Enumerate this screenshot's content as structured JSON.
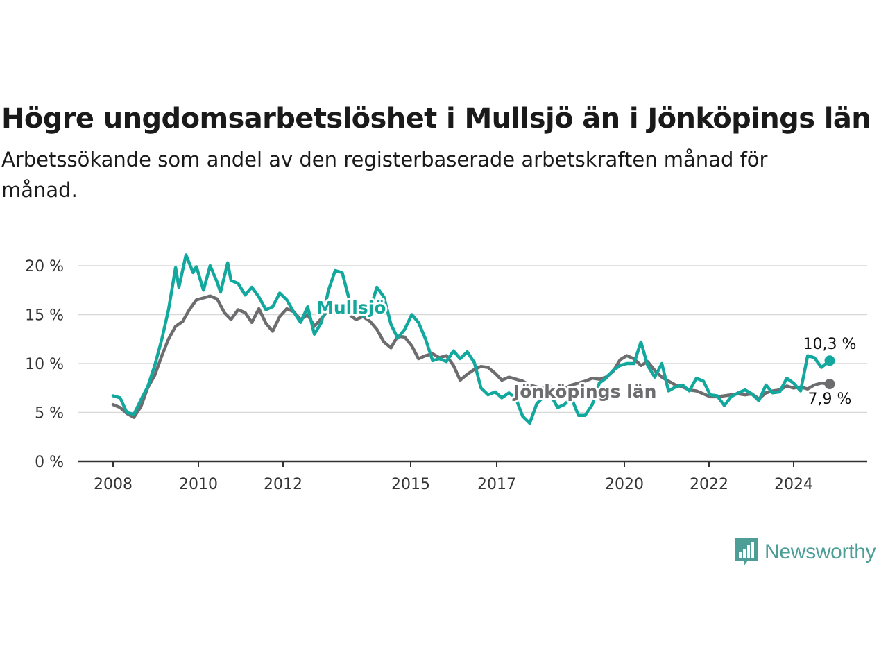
{
  "header": {
    "title": "Högre ungdomsarbetslöshet i Mullsjö än i Jönköpings län",
    "subtitle": "Arbetssökande som andel av den registerbaserade arbetskraften månad för månad."
  },
  "brand": {
    "name": "Newsworthy",
    "icon": "bar-chart-speech-bubble-icon",
    "color": "#4c9e97"
  },
  "chart_data": {
    "type": "line",
    "x_axis": {
      "min": 2008.0,
      "max": 2025.8,
      "ticks": [
        "2008",
        "2010",
        "2012",
        "2015",
        "2017",
        "2020",
        "2022",
        "2024"
      ]
    },
    "y_axis": {
      "min": 0,
      "max": 20,
      "ticks": [
        "0 %",
        "5 %",
        "10 %",
        "15 %",
        "20 %"
      ]
    },
    "grid": "horizontal",
    "series": [
      {
        "name": "Jönköpings län",
        "color": "#6d6d70",
        "end_label": "7,9 %",
        "points": [
          [
            2008.0,
            5.8
          ],
          [
            2008.17,
            5.5
          ],
          [
            2008.33,
            4.9
          ],
          [
            2008.5,
            4.5
          ],
          [
            2008.67,
            5.6
          ],
          [
            2008.83,
            7.5
          ],
          [
            2009.0,
            8.8
          ],
          [
            2009.17,
            10.8
          ],
          [
            2009.33,
            12.5
          ],
          [
            2009.5,
            13.8
          ],
          [
            2009.67,
            14.3
          ],
          [
            2009.83,
            15.5
          ],
          [
            2010.0,
            16.5
          ],
          [
            2010.17,
            16.7
          ],
          [
            2010.33,
            16.9
          ],
          [
            2010.5,
            16.6
          ],
          [
            2010.67,
            15.2
          ],
          [
            2010.83,
            14.5
          ],
          [
            2011.0,
            15.5
          ],
          [
            2011.17,
            15.2
          ],
          [
            2011.33,
            14.2
          ],
          [
            2011.5,
            15.6
          ],
          [
            2011.67,
            14.1
          ],
          [
            2011.83,
            13.3
          ],
          [
            2012.0,
            14.8
          ],
          [
            2012.17,
            15.6
          ],
          [
            2012.33,
            15.3
          ],
          [
            2012.5,
            14.5
          ],
          [
            2012.67,
            15.0
          ],
          [
            2012.83,
            13.8
          ],
          [
            2013.0,
            14.6
          ],
          [
            2013.17,
            15.5
          ],
          [
            2013.33,
            15.8
          ],
          [
            2013.5,
            15.6
          ],
          [
            2013.67,
            15.0
          ],
          [
            2013.83,
            14.5
          ],
          [
            2014.0,
            14.8
          ],
          [
            2014.17,
            14.3
          ],
          [
            2014.33,
            13.5
          ],
          [
            2014.5,
            12.2
          ],
          [
            2014.67,
            11.6
          ],
          [
            2014.83,
            12.8
          ],
          [
            2015.0,
            12.7
          ],
          [
            2015.17,
            11.8
          ],
          [
            2015.33,
            10.5
          ],
          [
            2015.5,
            10.8
          ],
          [
            2015.67,
            11.0
          ],
          [
            2015.83,
            10.6
          ],
          [
            2016.0,
            10.8
          ],
          [
            2016.17,
            9.8
          ],
          [
            2016.33,
            8.3
          ],
          [
            2016.5,
            8.9
          ],
          [
            2016.67,
            9.4
          ],
          [
            2016.83,
            9.7
          ],
          [
            2017.0,
            9.6
          ],
          [
            2017.17,
            9.0
          ],
          [
            2017.33,
            8.3
          ],
          [
            2017.5,
            8.6
          ],
          [
            2017.67,
            8.4
          ],
          [
            2017.83,
            8.2
          ],
          [
            2018.0,
            7.8
          ],
          [
            2018.17,
            7.6
          ],
          [
            2018.33,
            7.5
          ],
          [
            2018.5,
            7.6
          ],
          [
            2018.67,
            7.5
          ],
          [
            2018.83,
            7.4
          ],
          [
            2019.0,
            7.8
          ],
          [
            2019.17,
            8.0
          ],
          [
            2019.33,
            8.2
          ],
          [
            2019.5,
            8.5
          ],
          [
            2019.67,
            8.4
          ],
          [
            2019.83,
            8.6
          ],
          [
            2020.0,
            9.2
          ],
          [
            2020.17,
            10.4
          ],
          [
            2020.33,
            10.8
          ],
          [
            2020.5,
            10.5
          ],
          [
            2020.67,
            9.8
          ],
          [
            2020.83,
            10.2
          ],
          [
            2021.0,
            9.3
          ],
          [
            2021.17,
            8.6
          ],
          [
            2021.33,
            8.2
          ],
          [
            2021.5,
            7.8
          ],
          [
            2021.67,
            7.6
          ],
          [
            2021.83,
            7.3
          ],
          [
            2022.0,
            7.2
          ],
          [
            2022.17,
            6.9
          ],
          [
            2022.33,
            6.6
          ],
          [
            2022.5,
            6.6
          ],
          [
            2022.67,
            6.7
          ],
          [
            2022.83,
            6.8
          ],
          [
            2023.0,
            6.9
          ],
          [
            2023.17,
            6.8
          ],
          [
            2023.33,
            6.9
          ],
          [
            2023.5,
            6.4
          ],
          [
            2023.67,
            7.0
          ],
          [
            2023.83,
            7.2
          ],
          [
            2024.0,
            7.3
          ],
          [
            2024.17,
            7.7
          ],
          [
            2024.33,
            7.5
          ],
          [
            2024.5,
            7.6
          ],
          [
            2024.67,
            7.4
          ],
          [
            2024.83,
            7.8
          ],
          [
            2025.0,
            8.0
          ],
          [
            2025.2,
            7.9
          ]
        ]
      },
      {
        "name": "Mullsjö",
        "color": "#13a89e",
        "end_label": "10,3 %",
        "points": [
          [
            2008.0,
            6.7
          ],
          [
            2008.17,
            6.5
          ],
          [
            2008.33,
            5.0
          ],
          [
            2008.5,
            4.8
          ],
          [
            2008.67,
            6.3
          ],
          [
            2008.83,
            7.6
          ],
          [
            2009.0,
            9.8
          ],
          [
            2009.17,
            12.5
          ],
          [
            2009.33,
            15.5
          ],
          [
            2009.5,
            19.8
          ],
          [
            2009.58,
            17.8
          ],
          [
            2009.75,
            21.1
          ],
          [
            2009.92,
            19.3
          ],
          [
            2010.0,
            19.9
          ],
          [
            2010.17,
            17.5
          ],
          [
            2010.33,
            20.0
          ],
          [
            2010.5,
            18.3
          ],
          [
            2010.58,
            17.3
          ],
          [
            2010.75,
            20.3
          ],
          [
            2010.83,
            18.5
          ],
          [
            2011.0,
            18.2
          ],
          [
            2011.17,
            17.0
          ],
          [
            2011.33,
            17.8
          ],
          [
            2011.5,
            16.8
          ],
          [
            2011.67,
            15.5
          ],
          [
            2011.83,
            15.8
          ],
          [
            2012.0,
            17.2
          ],
          [
            2012.17,
            16.5
          ],
          [
            2012.33,
            15.3
          ],
          [
            2012.5,
            14.2
          ],
          [
            2012.67,
            15.8
          ],
          [
            2012.83,
            13.0
          ],
          [
            2013.0,
            14.2
          ],
          [
            2013.17,
            17.5
          ],
          [
            2013.33,
            19.5
          ],
          [
            2013.5,
            19.3
          ],
          [
            2013.67,
            16.5
          ],
          [
            2013.83,
            15.8
          ],
          [
            2014.0,
            14.8
          ],
          [
            2014.17,
            15.5
          ],
          [
            2014.33,
            17.8
          ],
          [
            2014.5,
            16.8
          ],
          [
            2014.67,
            14.0
          ],
          [
            2014.83,
            12.6
          ],
          [
            2015.0,
            13.5
          ],
          [
            2015.17,
            15.0
          ],
          [
            2015.33,
            14.2
          ],
          [
            2015.5,
            12.5
          ],
          [
            2015.67,
            10.3
          ],
          [
            2015.83,
            10.5
          ],
          [
            2016.0,
            10.2
          ],
          [
            2016.17,
            11.3
          ],
          [
            2016.33,
            10.5
          ],
          [
            2016.5,
            11.2
          ],
          [
            2016.67,
            10.1
          ],
          [
            2016.83,
            7.5
          ],
          [
            2017.0,
            6.8
          ],
          [
            2017.17,
            7.1
          ],
          [
            2017.33,
            6.5
          ],
          [
            2017.5,
            7.0
          ],
          [
            2017.67,
            6.4
          ],
          [
            2017.83,
            4.6
          ],
          [
            2018.0,
            3.9
          ],
          [
            2018.17,
            5.9
          ],
          [
            2018.33,
            6.6
          ],
          [
            2018.5,
            6.8
          ],
          [
            2018.67,
            5.5
          ],
          [
            2018.83,
            5.8
          ],
          [
            2019.0,
            6.5
          ],
          [
            2019.17,
            4.7
          ],
          [
            2019.33,
            4.7
          ],
          [
            2019.5,
            5.8
          ],
          [
            2019.67,
            8.0
          ],
          [
            2019.83,
            8.5
          ],
          [
            2020.0,
            9.3
          ],
          [
            2020.17,
            9.8
          ],
          [
            2020.33,
            10.0
          ],
          [
            2020.5,
            10.0
          ],
          [
            2020.67,
            12.2
          ],
          [
            2020.83,
            9.8
          ],
          [
            2021.0,
            8.6
          ],
          [
            2021.17,
            10.0
          ],
          [
            2021.33,
            7.2
          ],
          [
            2021.5,
            7.6
          ],
          [
            2021.67,
            7.8
          ],
          [
            2021.83,
            7.2
          ],
          [
            2022.0,
            8.5
          ],
          [
            2022.17,
            8.2
          ],
          [
            2022.33,
            6.8
          ],
          [
            2022.5,
            6.7
          ],
          [
            2022.67,
            5.7
          ],
          [
            2022.83,
            6.6
          ],
          [
            2023.0,
            7.0
          ],
          [
            2023.17,
            7.3
          ],
          [
            2023.33,
            6.9
          ],
          [
            2023.5,
            6.2
          ],
          [
            2023.67,
            7.8
          ],
          [
            2023.83,
            7.0
          ],
          [
            2024.0,
            7.1
          ],
          [
            2024.17,
            8.5
          ],
          [
            2024.33,
            8.0
          ],
          [
            2024.5,
            7.2
          ],
          [
            2024.67,
            10.8
          ],
          [
            2024.83,
            10.6
          ],
          [
            2025.0,
            9.6
          ],
          [
            2025.2,
            10.3
          ]
        ]
      }
    ]
  }
}
